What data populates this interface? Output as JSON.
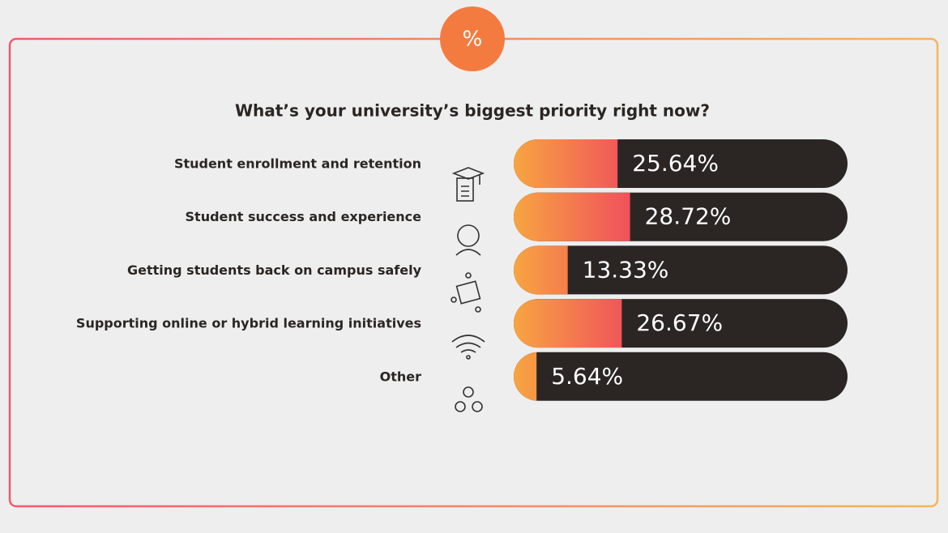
{
  "badge": "%",
  "chart_data": {
    "type": "bar",
    "orientation": "horizontal",
    "title": "What’s your university’s biggest priority right now?",
    "categories": [
      "Student enrollment and retention",
      "Student success and experience",
      "Getting students back on campus safely",
      "Supporting online or hybrid learning initiatives",
      "Other"
    ],
    "values": [
      25.64,
      28.72,
      13.33,
      26.67,
      5.64
    ],
    "value_labels": [
      "25.64%",
      "28.72%",
      "13.33%",
      "26.67%",
      "5.64%"
    ],
    "colors": [
      "#f7a541",
      "#ef4f5c"
    ],
    "track_color": "#2b2624"
  }
}
